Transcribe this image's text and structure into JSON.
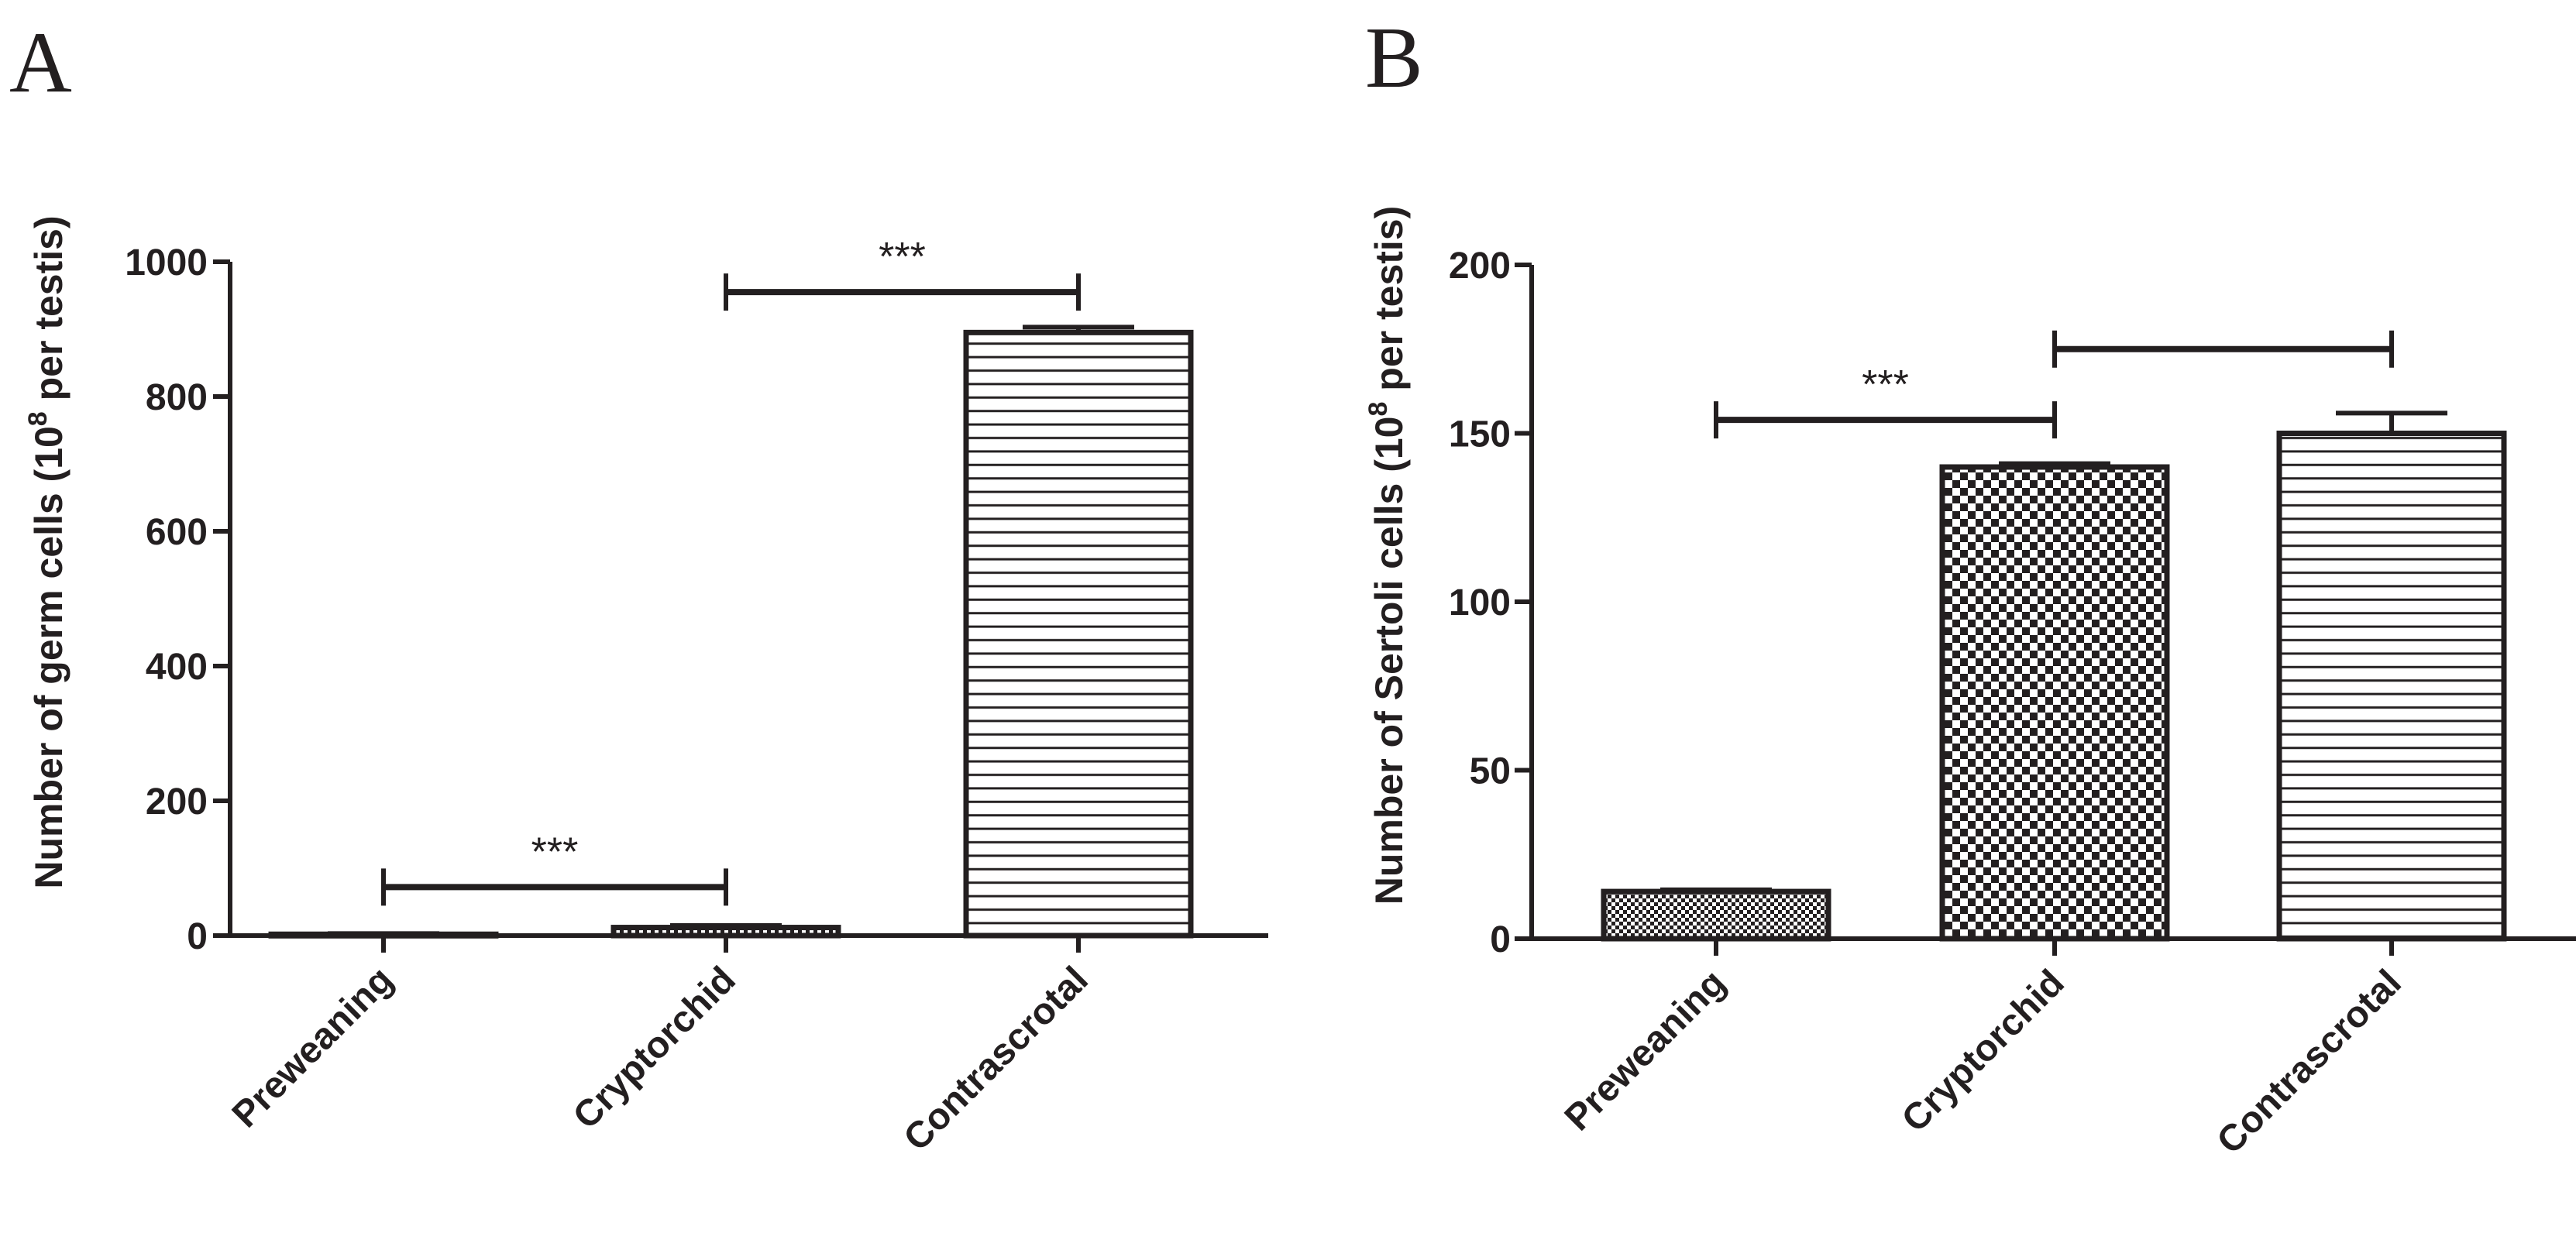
{
  "chart_data": [
    {
      "panel": "A",
      "type": "bar",
      "categories": [
        "Preweaning",
        "Cryptorchid",
        "Contrascrotal"
      ],
      "values": [
        2,
        12,
        895
      ],
      "errors": [
        1,
        3,
        8
      ],
      "patterns": [
        "hatch",
        "hatch",
        "hstripes"
      ],
      "ylabel_main": "Number of germ cells (10",
      "ylabel_sup": "8",
      "ylabel_tail": " per testis)",
      "ylim": [
        0,
        1000
      ],
      "yticks": [
        0,
        200,
        400,
        600,
        800,
        1000
      ],
      "comparisons": [
        {
          "from": 0,
          "to": 1,
          "y": 72,
          "label": "***"
        },
        {
          "from": 1,
          "to": 2,
          "y": 955,
          "label": "***"
        }
      ]
    },
    {
      "panel": "B",
      "type": "bar",
      "categories": [
        "Preweaning",
        "Cryptorchid",
        "Contrascrotal"
      ],
      "values": [
        14,
        140,
        150
      ],
      "errors": [
        0.5,
        1,
        6
      ],
      "patterns": [
        "dots",
        "checker",
        "hstripes"
      ],
      "ylabel_main": "Number of Sertoli cells (10",
      "ylabel_sup": "8",
      "ylabel_tail": " per testis)",
      "ylim": [
        0,
        200
      ],
      "yticks": [
        0,
        50,
        100,
        150,
        200
      ],
      "comparisons": [
        {
          "from": 0,
          "to": 1,
          "y": 154,
          "label": "***"
        },
        {
          "from": 1,
          "to": 2,
          "y": 175,
          "label": ""
        }
      ]
    }
  ],
  "colors": {
    "ink": "#231f20",
    "background": "#ffffff"
  }
}
